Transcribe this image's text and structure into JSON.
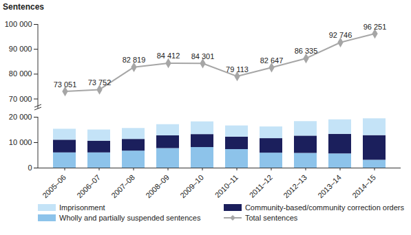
{
  "chart_data": [
    {
      "type": "line",
      "ylabel": "Sentences",
      "categories": [
        "2005–06",
        "2006–07",
        "2007–08",
        "2008–09",
        "2009–10",
        "2010–11",
        "2011–12",
        "2012–13",
        "2013–14",
        "2014–15"
      ],
      "series": [
        {
          "name": "Total sentences",
          "color": "#a6a6a6",
          "marker": "diamond",
          "values": [
            73051,
            73752,
            82819,
            84412,
            84301,
            79113,
            82647,
            86335,
            92746,
            96251
          ],
          "value_labels": [
            "73 051",
            "73 752",
            "82 819",
            "84 412",
            "84 301",
            "79 113",
            "82 647",
            "86 335",
            "92 746",
            "96 251"
          ]
        }
      ],
      "ylim": [
        66000,
        100000
      ],
      "yticks": [
        {
          "value": 70000,
          "label": "70 000"
        },
        {
          "value": 80000,
          "label": "80 000"
        },
        {
          "value": 90000,
          "label": "90 000"
        },
        {
          "value": 100000,
          "label": "100 000"
        }
      ],
      "data_labels": true,
      "tick_labels": "y",
      "grid": false
    },
    {
      "type": "bar",
      "stacked": true,
      "categories": [
        "2005–06",
        "2006–07",
        "2007–08",
        "2008–09",
        "2009–10",
        "2010–11",
        "2011–12",
        "2012–13",
        "2013–14",
        "2014–15"
      ],
      "series": [
        {
          "name": "Wholly and partially suspended sentences",
          "color": "#8dc3ea",
          "values": [
            6000,
            6000,
            6700,
            7700,
            8100,
            7300,
            5900,
            5800,
            5600,
            3100
          ]
        },
        {
          "name": "Community-based/community correction orders",
          "color": "#1b1f5c",
          "values": [
            5000,
            4600,
            4600,
            5000,
            5100,
            4900,
            5700,
            6800,
            7700,
            9700
          ]
        },
        {
          "name": "Imprisonment",
          "color": "#c4e3f7",
          "values": [
            4300,
            4400,
            4300,
            4400,
            5000,
            4400,
            4600,
            5700,
            5700,
            6600
          ]
        }
      ],
      "ylim": [
        0,
        20000
      ],
      "yticks": [
        0,
        {
          "value": 10000,
          "label": "10 000"
        },
        {
          "value": 20000,
          "label": "20 000"
        }
      ],
      "grid": false,
      "legend": "bottom"
    }
  ]
}
